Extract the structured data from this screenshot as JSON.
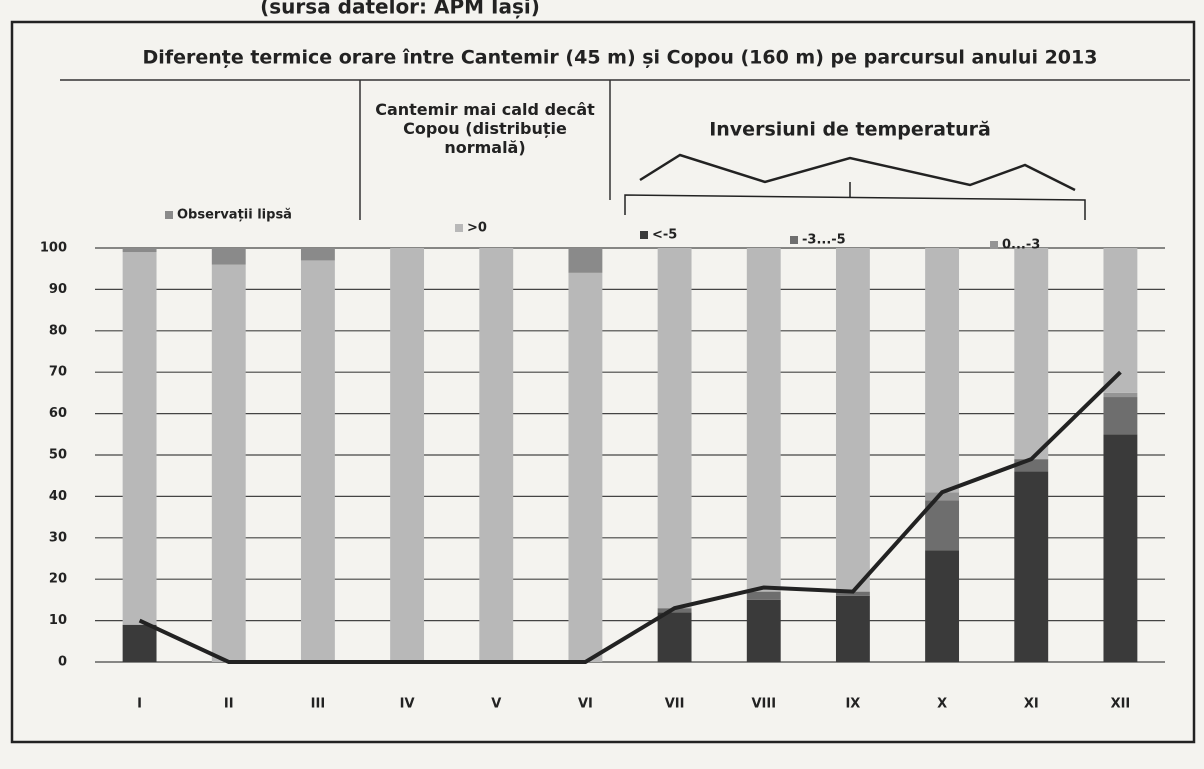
{
  "chart_data": {
    "type": "bar",
    "stacked": true,
    "title": "Diferențe termice orare între Cantemir (45 m) și Copou (160 m) pe parcursul anului 2013",
    "source": "(sursa datelor: APM Iași)",
    "annotations": [
      "Cantemir mai cald decât Copou (distribuție normală)",
      "Inversiuni de temperatură"
    ],
    "categories": [
      "I",
      "II",
      "III",
      "IV",
      "V",
      "VI",
      "VII",
      "VIII",
      "IX",
      "X",
      "XI",
      "XII"
    ],
    "series": [
      {
        "name": "<-5",
        "color": "#3a3a3a",
        "values": [
          9,
          0,
          0,
          0,
          0,
          0,
          12,
          15,
          16,
          27,
          46,
          55
        ]
      },
      {
        "name": "-3...-5",
        "color": "#6e6e6e",
        "values": [
          0,
          0,
          0,
          0,
          0,
          0,
          1,
          2,
          1,
          12,
          3,
          9
        ]
      },
      {
        "name": "0...-3",
        "color": "#959595",
        "values": [
          0,
          0,
          0,
          0,
          0,
          0,
          0,
          0,
          0,
          2,
          0,
          1
        ]
      },
      {
        "name": ">0",
        "color": "#b8b8b8",
        "values": [
          90,
          96,
          97,
          100,
          100,
          94,
          87,
          83,
          83,
          59,
          51,
          35
        ]
      },
      {
        "name": "Observații lipsă",
        "color": "#8a8a8a",
        "values": [
          1,
          4,
          3,
          0,
          0,
          6,
          0,
          0,
          0,
          0,
          0,
          0
        ]
      }
    ],
    "line": {
      "color": "#222222",
      "values": [
        10,
        0,
        0,
        0,
        0,
        0,
        13,
        18,
        17,
        41,
        49,
        70
      ]
    },
    "ylim": [
      0,
      100
    ],
    "yticks": [
      0,
      10,
      20,
      30,
      40,
      50,
      60,
      70,
      80,
      90,
      100
    ],
    "grid": true
  }
}
